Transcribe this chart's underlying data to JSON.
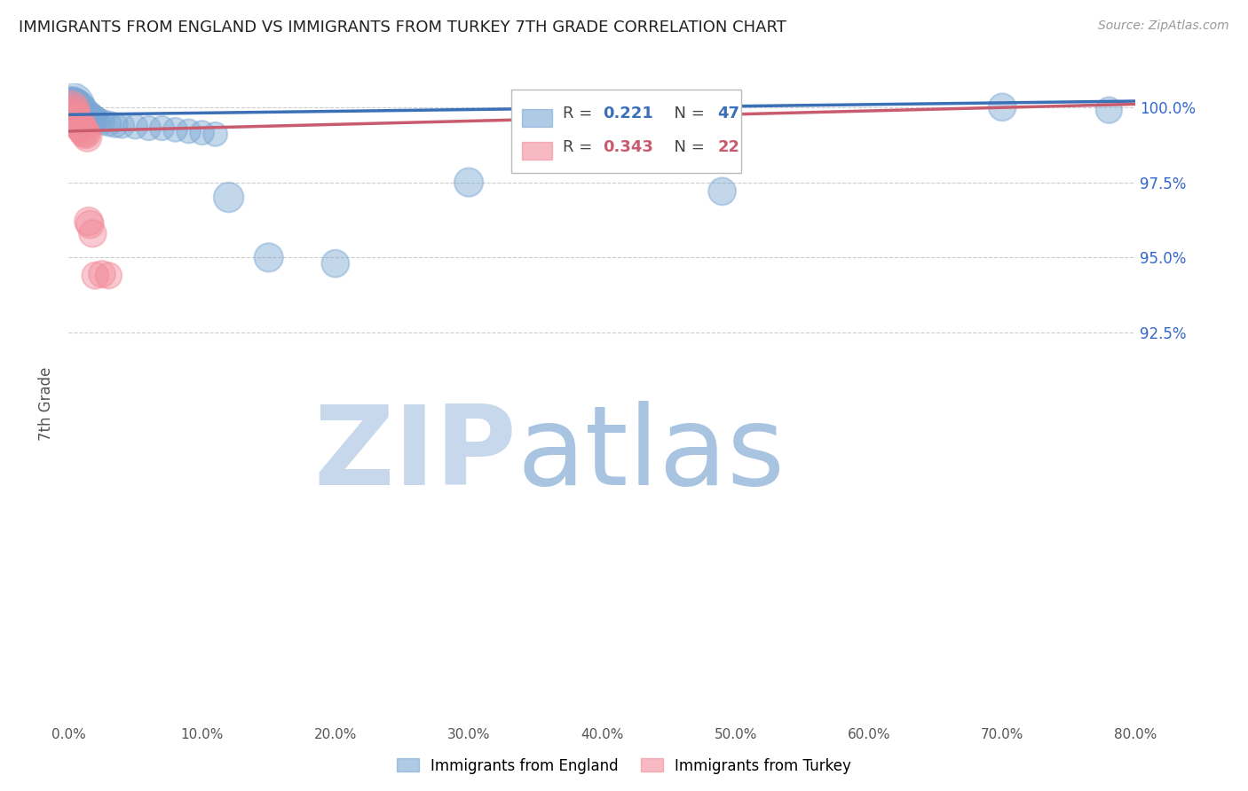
{
  "title": "IMMIGRANTS FROM ENGLAND VS IMMIGRANTS FROM TURKEY 7TH GRADE CORRELATION CHART",
  "source": "Source: ZipAtlas.com",
  "ylabel": "7th Grade",
  "xmin": 0.0,
  "xmax": 0.8,
  "ymin": 0.795,
  "ymax": 1.008,
  "yticks": [
    0.925,
    0.95,
    0.975,
    1.0
  ],
  "ytick_labels": [
    "92.5%",
    "95.0%",
    "97.5%",
    "100.0%"
  ],
  "xticks": [
    0.0,
    0.1,
    0.2,
    0.3,
    0.4,
    0.5,
    0.6,
    0.7,
    0.8
  ],
  "xtick_labels": [
    "0.0%",
    "10.0%",
    "20.0%",
    "30.0%",
    "40.0%",
    "50.0%",
    "60.0%",
    "70.0%",
    "80.0%"
  ],
  "england_color": "#7BA7D4",
  "turkey_color": "#F28B9A",
  "england_line_color": "#3B6FB6",
  "turkey_line_color": "#C95B6E",
  "england_R": 0.221,
  "england_N": 47,
  "turkey_R": 0.343,
  "turkey_N": 22,
  "eng_line_x0": 0.0,
  "eng_line_x1": 0.8,
  "eng_line_y0": 0.9975,
  "eng_line_y1": 1.002,
  "tur_line_x0": 0.0,
  "tur_line_x1": 0.8,
  "tur_line_y0": 0.992,
  "tur_line_y1": 1.001,
  "england_scatter_x": [
    0.001,
    0.002,
    0.002,
    0.003,
    0.003,
    0.004,
    0.004,
    0.005,
    0.005,
    0.006,
    0.006,
    0.007,
    0.007,
    0.008,
    0.008,
    0.009,
    0.01,
    0.01,
    0.011,
    0.012,
    0.013,
    0.014,
    0.015,
    0.016,
    0.017,
    0.018,
    0.019,
    0.02,
    0.022,
    0.025,
    0.03,
    0.035,
    0.04,
    0.05,
    0.06,
    0.07,
    0.08,
    0.09,
    0.1,
    0.11,
    0.12,
    0.15,
    0.2,
    0.3,
    0.49,
    0.7,
    0.78
  ],
  "england_scatter_y": [
    1.0,
    1.0,
    0.9998,
    1.0,
    0.9995,
    1.0,
    0.9992,
    1.0,
    0.9994,
    0.9997,
    0.9993,
    0.9996,
    0.999,
    0.9993,
    0.9988,
    0.9985,
    0.999,
    0.9982,
    0.9978,
    0.998,
    0.9975,
    0.9972,
    0.9975,
    0.997,
    0.9968,
    0.9965,
    0.996,
    0.996,
    0.9955,
    0.995,
    0.9945,
    0.994,
    0.9938,
    0.9935,
    0.993,
    0.993,
    0.9925,
    0.992,
    0.9915,
    0.991,
    0.97,
    0.95,
    0.948,
    0.975,
    0.972,
    1.0,
    0.999
  ],
  "england_scatter_sizes": [
    180,
    120,
    100,
    110,
    90,
    100,
    85,
    95,
    80,
    85,
    75,
    80,
    70,
    75,
    65,
    70,
    70,
    60,
    65,
    60,
    55,
    55,
    55,
    50,
    50,
    50,
    48,
    48,
    46,
    46,
    45,
    44,
    44,
    43,
    43,
    43,
    42,
    42,
    42,
    42,
    65,
    60,
    55,
    60,
    55,
    55,
    50
  ],
  "turkey_scatter_x": [
    0.001,
    0.002,
    0.002,
    0.003,
    0.003,
    0.004,
    0.005,
    0.006,
    0.007,
    0.008,
    0.009,
    0.01,
    0.011,
    0.012,
    0.013,
    0.014,
    0.015,
    0.016,
    0.018,
    0.02,
    0.025,
    0.03
  ],
  "turkey_scatter_y": [
    0.999,
    0.9985,
    0.9978,
    0.9975,
    0.9968,
    0.996,
    0.9955,
    0.995,
    0.9945,
    0.994,
    0.9935,
    0.993,
    0.992,
    0.9915,
    0.991,
    0.99,
    0.962,
    0.961,
    0.958,
    0.944,
    0.9445,
    0.944
  ],
  "turkey_scatter_sizes": [
    110,
    95,
    85,
    85,
    80,
    80,
    75,
    72,
    70,
    68,
    67,
    65,
    63,
    62,
    60,
    60,
    58,
    56,
    54,
    52,
    52,
    50
  ],
  "watermark_zip": "ZIP",
  "watermark_atlas": "atlas",
  "watermark_color_zip": "#C8D8EC",
  "watermark_color_atlas": "#A8C4E0",
  "background_color": "#ffffff",
  "grid_color": "#cccccc",
  "legend_R_label": "R = ",
  "legend_N_label": "  N = ",
  "legend_eng_R_val": "0.221",
  "legend_eng_N_val": "47",
  "legend_tur_R_val": "0.343",
  "legend_tur_N_val": "22"
}
